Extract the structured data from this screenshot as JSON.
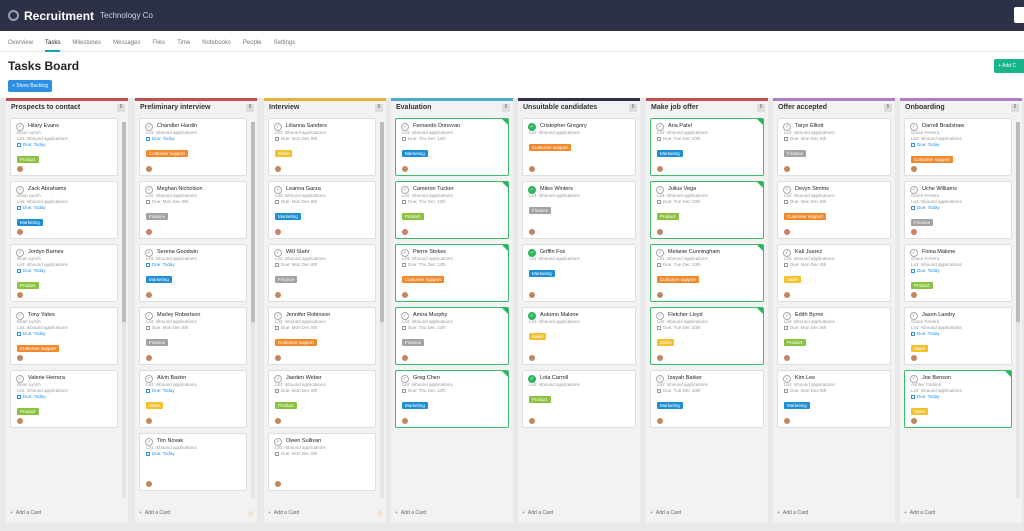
{
  "app": {
    "title": "Recruitment",
    "subtitle": "Technology Co"
  },
  "nav": {
    "tabs": [
      "Overview",
      "Tasks",
      "Milestones",
      "Messages",
      "Files",
      "Time",
      "Notebooks",
      "People",
      "Settings"
    ],
    "active_index": 1
  },
  "page": {
    "title": "Tasks Board",
    "add_label": "+ Add C",
    "show_backlog_label": "+ Show Backlog",
    "add_card_label": "Add a Card"
  },
  "tag_colors": {
    "Product": "#8ac43f",
    "Marketing": "#1e8fd6",
    "Customer support": "#f08a2c",
    "Finance": "#a3a3a3",
    "Sales": "#f2c12e"
  },
  "columns": [
    {
      "title": "Prospects to contact",
      "count": "6",
      "color": "#c0504d",
      "scroll": true,
      "cards": [
        {
          "name": "Hilary Evans",
          "owner": "Brian Lynch",
          "list": "List: Inbound applications",
          "due": "Due: Today",
          "due_blue": true,
          "tag": "Product",
          "done": false
        },
        {
          "name": "Zack Abrahams",
          "owner": "Brian Lynch",
          "list": "List: Inbound applications",
          "due": "Due: Today",
          "due_blue": true,
          "tag": "Marketing",
          "done": false
        },
        {
          "name": "Jordyn Barnes",
          "owner": "Brian Lynch",
          "list": "List: Inbound applications",
          "due": "Due: Today",
          "due_blue": true,
          "tag": "Product",
          "done": false
        },
        {
          "name": "Tony Yates",
          "owner": "Brian Lynch",
          "list": "List: Inbound applications",
          "due": "Due: Today",
          "due_blue": true,
          "tag": "Customer support",
          "done": false
        },
        {
          "name": "Valerie Herrera",
          "owner": "Brian Lynch",
          "list": "List: Inbound applications",
          "due": "Due: Today",
          "due_blue": true,
          "tag": "Product",
          "done": false
        }
      ]
    },
    {
      "title": "Preliminary interview",
      "count": "8",
      "color": "#c0504d",
      "scroll": true,
      "cards": [
        {
          "name": "Chandler Hardin",
          "owner": "",
          "list": "List: Inbound applications",
          "due": "Due: Today",
          "due_blue": true,
          "tag": "Customer support",
          "done": false
        },
        {
          "name": "Meghan Nicholson",
          "owner": "",
          "list": "List: Inbound applications",
          "due": "Due: Mon Dec 8th",
          "due_blue": false,
          "tag": "Finance",
          "done": false
        },
        {
          "name": "Serena Goodwin",
          "owner": "",
          "list": "List: Inbound applications",
          "due": "Due: Today",
          "due_blue": true,
          "tag": "Marketing",
          "done": false
        },
        {
          "name": "Marley Robertson",
          "owner": "",
          "list": "List: Inbound applications",
          "due": "Due: Mon Dec 8th",
          "due_blue": false,
          "tag": "Finance",
          "done": false
        },
        {
          "name": "Alvin Baxter",
          "owner": "",
          "list": "List: Inbound applications",
          "due": "Due: Today",
          "due_blue": true,
          "tag": "Sales",
          "done": false
        },
        {
          "name": "Tim Novak",
          "owner": "",
          "list": "List: Inbound applications",
          "due": "Due: Today",
          "due_blue": true,
          "tag": "",
          "done": false
        }
      ]
    },
    {
      "title": "Interview",
      "count": "6",
      "color": "#e8b23a",
      "scroll": true,
      "cards": [
        {
          "name": "Lilianna Sanders",
          "owner": "",
          "list": "List: Inbound applications",
          "due": "Due: Mon Dec 8th",
          "due_blue": false,
          "tag": "Sales",
          "done": false
        },
        {
          "name": "Leanna Garza",
          "owner": "",
          "list": "List: Inbound applications",
          "due": "Due: Mon Dec 8th",
          "due_blue": false,
          "tag": "Marketing",
          "done": false
        },
        {
          "name": "Will Stahr",
          "owner": "",
          "list": "List: Inbound applications",
          "due": "Due: Mon Dec 8th",
          "due_blue": false,
          "tag": "Finance",
          "done": false
        },
        {
          "name": "Jennifer Robinson",
          "owner": "",
          "list": "List: Inbound applications",
          "due": "Due: Mon Dec 8th",
          "due_blue": false,
          "tag": "Customer support",
          "done": false
        },
        {
          "name": "Jaeden Weber",
          "owner": "",
          "list": "List: Inbound applications",
          "due": "Due: Mon Dec 8th",
          "due_blue": false,
          "tag": "Product",
          "done": false
        },
        {
          "name": "Owen Sullivan",
          "owner": "",
          "list": "List: Inbound applications",
          "due": "Due: Mon Dec 8th",
          "due_blue": false,
          "tag": "",
          "done": false
        }
      ]
    },
    {
      "title": "Evaluation",
      "count": "5",
      "color": "#4bacc6",
      "scroll": false,
      "cards": [
        {
          "name": "Fernando Donovan",
          "owner": "",
          "list": "List: Inbound applications",
          "due": "Due: Thu Dec 12th",
          "due_blue": false,
          "tag": "Marketing",
          "done": true
        },
        {
          "name": "Cameron Tucker",
          "owner": "",
          "list": "List: Inbound applications",
          "due": "Due: Thu Dec 12th",
          "due_blue": false,
          "tag": "Product",
          "done": true
        },
        {
          "name": "Pierre Stokes",
          "owner": "",
          "list": "List: Inbound applications",
          "due": "Due: Thu Dec 12th",
          "due_blue": false,
          "tag": "Customer support",
          "done": true
        },
        {
          "name": "Amira Murphy",
          "owner": "",
          "list": "List: Inbound applications",
          "due": "Due: Thu Dec 12th",
          "due_blue": false,
          "tag": "Finance",
          "done": true
        },
        {
          "name": "Greg Chen",
          "owner": "",
          "list": "List: Inbound applications",
          "due": "Due: Thu Dec 12th",
          "due_blue": false,
          "tag": "Marketing",
          "done": true
        }
      ]
    },
    {
      "title": "Unsuitable candidates",
      "count": "5",
      "color": "#2d3147",
      "scroll": false,
      "cards": [
        {
          "name": "Cristopher Gregory",
          "owner": "",
          "list": "List: Inbound applications",
          "due": "",
          "due_blue": false,
          "tag": "Customer support",
          "done": false,
          "check_green": true
        },
        {
          "name": "Miles Winters",
          "owner": "",
          "list": "List: Inbound applications",
          "due": "",
          "due_blue": false,
          "tag": "Finance",
          "done": false,
          "check_green": true
        },
        {
          "name": "Griffin Fox",
          "owner": "",
          "list": "List: Inbound applications",
          "due": "",
          "due_blue": false,
          "tag": "Marketing",
          "done": false,
          "check_green": true
        },
        {
          "name": "Autumn Malone",
          "owner": "",
          "list": "List: Inbound applications",
          "due": "",
          "due_blue": false,
          "tag": "Sales",
          "done": false,
          "check_green": true
        },
        {
          "name": "Lola Carroll",
          "owner": "",
          "list": "List: Inbound applications",
          "due": "",
          "due_blue": false,
          "tag": "Product",
          "done": false,
          "check_green": true
        }
      ]
    },
    {
      "title": "Make job offer",
      "count": "5",
      "color": "#c0504d",
      "scroll": false,
      "cards": [
        {
          "name": "Aria Patel",
          "owner": "",
          "list": "List: Inbound applications",
          "due": "Due: Tue Dec 10th",
          "due_blue": false,
          "tag": "Marketing",
          "done": true
        },
        {
          "name": "Julius Vega",
          "owner": "",
          "list": "List: Inbound applications",
          "due": "Due: Tue Dec 10th",
          "due_blue": false,
          "tag": "Product",
          "done": true
        },
        {
          "name": "Melanie Cunningham",
          "owner": "",
          "list": "List: Inbound applications",
          "due": "Due: Tue Dec 10th",
          "due_blue": false,
          "tag": "Customer support",
          "done": true
        },
        {
          "name": "Fletcher Lloyd",
          "owner": "",
          "list": "List: Inbound applications",
          "due": "Due: Tue Dec 10th",
          "due_blue": false,
          "tag": "Sales",
          "done": true
        },
        {
          "name": "Izayah Barker",
          "owner": "",
          "list": "List: Inbound applications",
          "due": "Due: Tue Dec 10th",
          "due_blue": false,
          "tag": "Marketing",
          "done": false
        }
      ]
    },
    {
      "title": "Offer accepted",
      "count": "5",
      "color": "#b07cc6",
      "scroll": false,
      "cards": [
        {
          "name": "Taryn Elliott",
          "owner": "",
          "list": "List: Inbound applications",
          "due": "Due: Mon Dec 8th",
          "due_blue": false,
          "tag": "Finance",
          "done": false
        },
        {
          "name": "Devyn Simms",
          "owner": "",
          "list": "List: Inbound applications",
          "due": "Due: Mon Dec 8th",
          "due_blue": false,
          "tag": "Customer support",
          "done": false
        },
        {
          "name": "Kali Juarez",
          "owner": "",
          "list": "List: Inbound applications",
          "due": "Due: Mon Dec 8th",
          "due_blue": false,
          "tag": "Sales",
          "done": false
        },
        {
          "name": "Edith Byrne",
          "owner": "",
          "list": "List: Inbound applications",
          "due": "Due: Mon Dec 8th",
          "due_blue": false,
          "tag": "Product",
          "done": false
        },
        {
          "name": "Kim Lee",
          "owner": "",
          "list": "List: Inbound applications",
          "due": "Due: Mon Dec 8th",
          "due_blue": false,
          "tag": "Marketing",
          "done": false
        }
      ]
    },
    {
      "title": "Onboarding",
      "count": "6",
      "color": "#b07cc6",
      "scroll": true,
      "cards": [
        {
          "name": "Darrell Bradshaw",
          "owner": "Grace Ferrera",
          "list": "List: Inbound applications",
          "due": "Due: Today",
          "due_blue": true,
          "tag": "Customer support",
          "done": false
        },
        {
          "name": "Uche Williams",
          "owner": "Grace Ferrera",
          "list": "List: Inbound applications",
          "due": "Due: Today",
          "due_blue": true,
          "tag": "Finance",
          "done": false
        },
        {
          "name": "Fiona Malone",
          "owner": "Grace Ferrera",
          "list": "List: Inbound applications",
          "due": "Due: Today",
          "due_blue": true,
          "tag": "Product",
          "done": false
        },
        {
          "name": "Jason Landry",
          "owner": "Grace Ferrera",
          "list": "List: Inbound applications",
          "due": "Due: Today",
          "due_blue": true,
          "tag": "Sales",
          "done": false
        },
        {
          "name": "Joe Benson",
          "owner": "Ashley Carlson",
          "list": "List: Inbound applications",
          "due": "Due: Today",
          "due_blue": true,
          "tag": "Sales",
          "done": true
        }
      ]
    }
  ]
}
